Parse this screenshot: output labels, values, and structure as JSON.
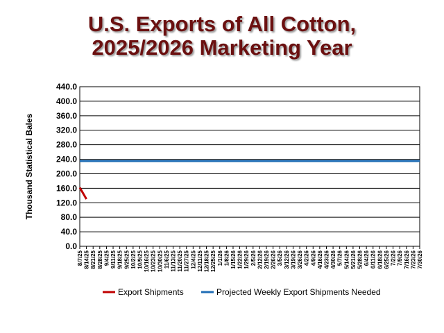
{
  "chart_data": {
    "type": "line",
    "title": "U.S. Exports of All Cotton, 2025/2026 Marketing Year",
    "y_label": "Thousand Statistical Bales",
    "categories": [
      "8/7/25",
      "8/14/25",
      "8/21/25",
      "8/28/25",
      "9/4/25",
      "9/11/25",
      "9/18/25",
      "9/25/25",
      "10/2/25",
      "10/9/25",
      "10/16/25",
      "10/23/25",
      "10/30/25",
      "11/6/25",
      "11/13/25",
      "11/20/25",
      "11/27/25",
      "12/4/25",
      "12/11/25",
      "12/18/25",
      "12/25/25",
      "1/1/26",
      "1/8/26",
      "1/15/26",
      "1/22/26",
      "1/29/26",
      "2/5/26",
      "2/12/26",
      "2/19/26",
      "2/26/26",
      "3/5/26",
      "3/12/26",
      "3/19/26",
      "3/26/26",
      "4/2/26",
      "4/9/26",
      "4/16/26",
      "4/23/26",
      "4/30/26",
      "5/7/26",
      "5/14/26",
      "5/21/26",
      "5/28/26",
      "6/4/26",
      "6/11/26",
      "6/18/26",
      "6/25/26",
      "7/2/26",
      "7/9/26",
      "7/16/26",
      "7/23/26",
      "7/30/26"
    ],
    "series": [
      {
        "name": "Export Shipments",
        "color": "#c00000",
        "values": [
          162,
          130,
          null,
          null,
          null,
          null,
          null,
          null,
          null,
          null,
          null,
          null,
          null,
          null,
          null,
          null,
          null,
          null,
          null,
          null,
          null,
          null,
          null,
          null,
          null,
          null,
          null,
          null,
          null,
          null,
          null,
          null,
          null,
          null,
          null,
          null,
          null,
          null,
          null,
          null,
          null,
          null,
          null,
          null,
          null,
          null,
          null,
          null,
          null,
          null,
          null,
          null
        ]
      },
      {
        "name": "Projected Weekly Export Shipments Needed",
        "color": "#1f6db5",
        "values": [
          235,
          235,
          235,
          235,
          235,
          235,
          235,
          235,
          235,
          235,
          235,
          235,
          235,
          235,
          235,
          235,
          235,
          235,
          235,
          235,
          235,
          235,
          235,
          235,
          235,
          235,
          235,
          235,
          235,
          235,
          235,
          235,
          235,
          235,
          235,
          235,
          235,
          235,
          235,
          235,
          235,
          235,
          235,
          235,
          235,
          235,
          235,
          235,
          235,
          235,
          235,
          235
        ]
      }
    ],
    "ylim": [
      0,
      440
    ],
    "yticks": [
      {
        "value": 0,
        "label": "0.0"
      },
      {
        "value": 40,
        "label": "40.0"
      },
      {
        "value": 80,
        "label": "80.0"
      },
      {
        "value": 120,
        "label": "120.0"
      },
      {
        "value": 160,
        "label": "160.0"
      },
      {
        "value": 200,
        "label": "200.0"
      },
      {
        "value": 240,
        "label": "240.0"
      },
      {
        "value": 280,
        "label": "280.0"
      },
      {
        "value": 320,
        "label": "320.0"
      },
      {
        "value": 360,
        "label": "360.0"
      },
      {
        "value": 400,
        "label": "400.0"
      },
      {
        "value": 440,
        "label": "440.0"
      }
    ],
    "grid": true,
    "legend": "bottom"
  }
}
